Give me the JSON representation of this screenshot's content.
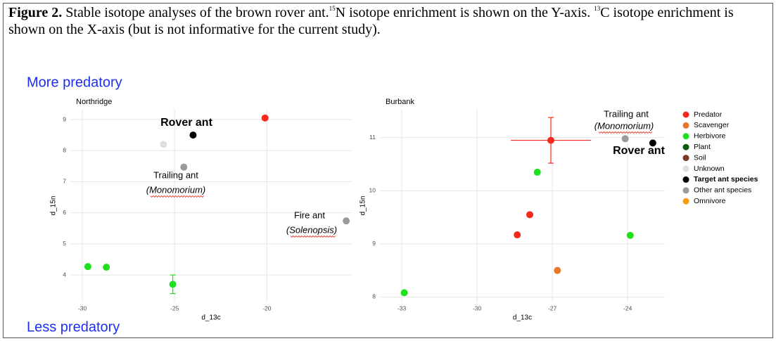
{
  "caption": {
    "label": "Figure 2.",
    "part1": " Stable isotope analyses of the brown rover ant.",
    "sup1": "15",
    "part2": "N isotope enrichment is shown on the Y-axis. ",
    "sup2": "13",
    "part3": "C isotope enrichment is shown on the X-axis (but is not informative for the current study)."
  },
  "top_label": "More predatory",
  "bottom_label": "Less predatory",
  "legend": {
    "position": "right",
    "entries": [
      {
        "name": "Predator",
        "color": "#f8291c"
      },
      {
        "name": "Scavenger",
        "color": "#e8772e"
      },
      {
        "name": "Herbivore",
        "color": "#1fe01f"
      },
      {
        "name": "Plant",
        "color": "#0d5c0d"
      },
      {
        "name": "Soil",
        "color": "#7a3a2a"
      },
      {
        "name": "Unknown",
        "color": "#dedede"
      },
      {
        "name": "Target ant species",
        "color": "#000000",
        "bold": true
      },
      {
        "name": "Other ant species",
        "color": "#9a9a9a"
      },
      {
        "name": "Omnivore",
        "color": "#f59d0c"
      }
    ]
  },
  "chart_data": [
    {
      "type": "scatter",
      "title": "Northridge",
      "x_label": "d_13c",
      "y_label": "d_15n",
      "xlim": [
        -30.65,
        -15.4
      ],
      "ylim": [
        3.12,
        9.34
      ],
      "xticks": [
        -30,
        -25,
        -20
      ],
      "yticks": [
        4,
        5,
        6,
        7,
        8,
        9
      ],
      "grid": true,
      "series": [
        {
          "color": "#f8291c",
          "x": [
            -20.1
          ],
          "values": [
            9.05
          ]
        },
        {
          "color": "#000000",
          "x": [
            -24.0
          ],
          "values": [
            8.5
          ]
        },
        {
          "color": "#dedede",
          "x": [
            -25.6
          ],
          "values": [
            8.2
          ]
        },
        {
          "color": "#9a9a9a",
          "x": [
            -24.5,
            -15.7
          ],
          "values": [
            7.47,
            5.74
          ]
        },
        {
          "color": "#1fe01f",
          "x": [
            -29.7,
            -28.7
          ],
          "values": [
            4.27,
            4.25
          ]
        },
        {
          "color": "#1fe01f",
          "x": [
            -25.1
          ],
          "values": [
            3.7
          ],
          "y_errors": [
            0.3
          ]
        }
      ],
      "annotations": [
        {
          "text": "Rover ant",
          "bold": true
        },
        {
          "text": "Trailing ant"
        },
        {
          "text": "(Monomorium)",
          "italic": true
        },
        {
          "text": "Fire ant"
        },
        {
          "text": "(Solenopsis)",
          "italic": true
        }
      ]
    },
    {
      "type": "scatter",
      "title": "Burbank",
      "x_label": "d_13c",
      "y_label": "d_15n",
      "xlim": [
        -33.87,
        -22.52
      ],
      "ylim": [
        7.9,
        11.54
      ],
      "xticks": [
        -33,
        -30,
        -27,
        -24
      ],
      "yticks": [
        8,
        9,
        10,
        11
      ],
      "grid": true,
      "series": [
        {
          "color": "#f8291c",
          "x": [
            -27.06
          ],
          "values": [
            10.95
          ],
          "x_errors": [
            1.6
          ],
          "y_errors": [
            0.43
          ]
        },
        {
          "color": "#f8291c",
          "x": [
            -27.9,
            -28.4
          ],
          "values": [
            9.55,
            9.17
          ]
        },
        {
          "color": "#1fe01f",
          "x": [
            -27.6,
            -23.9,
            -32.9
          ],
          "values": [
            10.35,
            9.16,
            8.08
          ]
        },
        {
          "color": "#e8772e",
          "x": [
            -26.8
          ],
          "values": [
            8.5
          ]
        },
        {
          "color": "#9a9a9a",
          "x": [
            -24.1
          ],
          "values": [
            10.98
          ]
        },
        {
          "color": "#000000",
          "x": [
            -23.0
          ],
          "values": [
            10.9
          ]
        }
      ],
      "annotations": [
        {
          "text": "Trailing ant"
        },
        {
          "text": "(Monomorium)",
          "italic": true
        },
        {
          "text": "Rover ant",
          "bold": true
        }
      ]
    }
  ]
}
